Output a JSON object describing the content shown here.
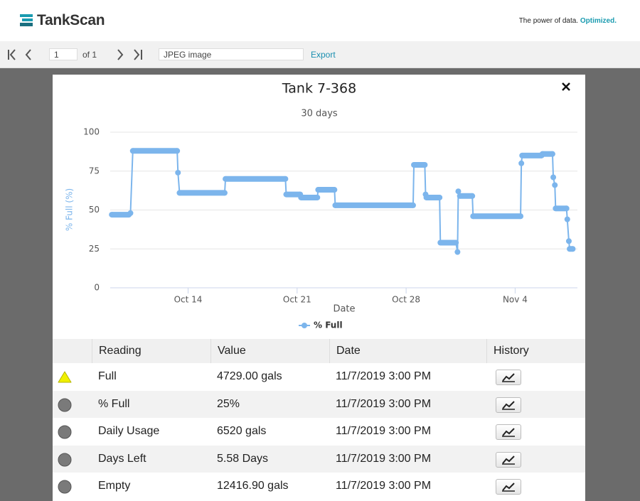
{
  "header": {
    "brand": "TankScan",
    "tagline": "The power of data.",
    "tagline_emphasis": "Optimized."
  },
  "toolbar": {
    "page": "1",
    "of": "of 1",
    "format": "JPEG image",
    "export": "Export"
  },
  "chart_data": {
    "type": "line",
    "title": "Tank 7-368",
    "subtitle": "30 days",
    "y_label": "% Full (%)",
    "x_label": "Date",
    "x": [
      9.1,
      10.2,
      10.3,
      10.45,
      13.3,
      13.35,
      13.45,
      16.35,
      16.4,
      20.25,
      20.3,
      21.2,
      21.25,
      22.3,
      22.35,
      23.4,
      23.45,
      28.45,
      28.5,
      29.2,
      29.25,
      29.3,
      30.15,
      30.2,
      31.2,
      31.3,
      31.35,
      31.45,
      32.25,
      32.3,
      35.35,
      35.4,
      35.45,
      36.7,
      36.75,
      37.4,
      37.45,
      37.55,
      37.6,
      38.3,
      38.35,
      38.45,
      38.5,
      38.7
    ],
    "series": [
      {
        "name": "% Full",
        "color": "#7cb5ec",
        "values": [
          47,
          47,
          48,
          88,
          88,
          74,
          61,
          61,
          70,
          70,
          60,
          60,
          58,
          58,
          63,
          63,
          53,
          53,
          79,
          79,
          60,
          58,
          58,
          29,
          29,
          23,
          62,
          59,
          59,
          46,
          46,
          80,
          85,
          85,
          86,
          86,
          71,
          66,
          51,
          51,
          44,
          30,
          25,
          25
        ]
      }
    ],
    "xlim": [
      9,
      39
    ],
    "xticks": [
      {
        "value": 14,
        "label": "Oct 14"
      },
      {
        "value": 21,
        "label": "Oct 21"
      },
      {
        "value": 28,
        "label": "Oct 28"
      },
      {
        "value": 35,
        "label": "Nov 4"
      }
    ],
    "ylim": [
      0,
      100
    ],
    "yticks": [
      0,
      25,
      50,
      75,
      100
    ],
    "grid": true
  },
  "table": {
    "headers": [
      "Reading",
      "Value",
      "Date",
      "History"
    ],
    "rows": [
      [
        "Full",
        "4729.00 gals",
        "11/7/2019 3:00 PM"
      ],
      [
        "% Full",
        "25%",
        "11/7/2019 3:00 PM"
      ],
      [
        "Daily Usage",
        "6520 gals",
        "11/7/2019 3:00 PM"
      ],
      [
        "Days Left",
        "5.58 Days",
        "11/7/2019 3:00 PM"
      ],
      [
        "Empty",
        "12416.90 gals",
        "11/7/2019 3:00 PM"
      ]
    ]
  }
}
